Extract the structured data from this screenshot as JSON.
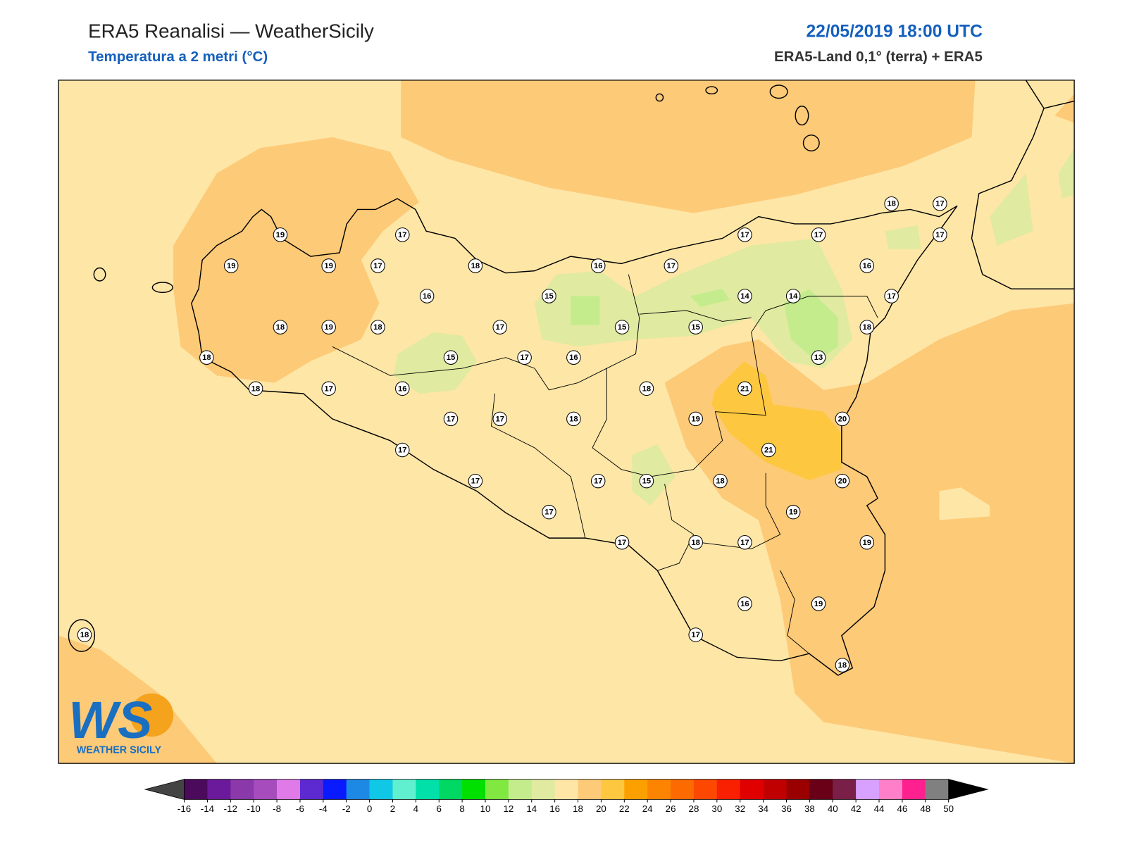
{
  "header": {
    "title": "ERA5 Reanalisi — WeatherSicily",
    "subtitle": "Temperatura a 2 metri (°C)",
    "datetime": "22/05/2019 18:00 UTC",
    "source": "ERA5-Land 0,1° (terra) + ERA5"
  },
  "station_values": [
    19,
    19,
    19,
    17,
    17,
    18,
    16,
    15,
    16,
    17,
    17,
    17,
    18,
    17,
    17,
    16,
    17,
    14,
    14,
    18,
    19,
    18,
    17,
    15,
    15,
    18,
    18,
    15,
    17,
    16,
    13,
    18,
    17,
    16,
    18,
    21,
    17,
    17,
    18,
    19,
    20,
    17,
    21,
    17,
    17,
    15,
    18,
    20,
    17,
    19,
    17,
    18,
    17,
    19,
    16,
    19,
    17,
    18,
    18
  ],
  "colorbar": {
    "ticks": [
      -16,
      -14,
      -12,
      -10,
      -8,
      -6,
      -4,
      -2,
      0,
      2,
      4,
      6,
      8,
      10,
      12,
      14,
      16,
      18,
      20,
      22,
      24,
      26,
      28,
      30,
      32,
      34,
      36,
      38,
      40,
      42,
      44,
      46,
      48,
      50
    ],
    "colors": [
      "#4b0a5c",
      "#6a1a9a",
      "#8a38aa",
      "#a64cbc",
      "#e07ae8",
      "#5c2ad0",
      "#0a1aff",
      "#1e88e5",
      "#10c8e6",
      "#60f0d0",
      "#00e0a8",
      "#00d864",
      "#00e000",
      "#80e840",
      "#c4ec8c",
      "#e0eaa0",
      "#fee6a6",
      "#fdca78",
      "#fdc840",
      "#fca000",
      "#fc8400",
      "#fc6a00",
      "#fc4800",
      "#f82000",
      "#e00000",
      "#c00000",
      "#9a0000",
      "#6a0018",
      "#7a2048",
      "#d8a0ff",
      "#ff80c8",
      "#ff2090",
      "#808080"
    ],
    "under_color": "#444444",
    "over_color": "#000000"
  },
  "logo": {
    "mark": "WS",
    "text": "WEATHER SICILY"
  }
}
